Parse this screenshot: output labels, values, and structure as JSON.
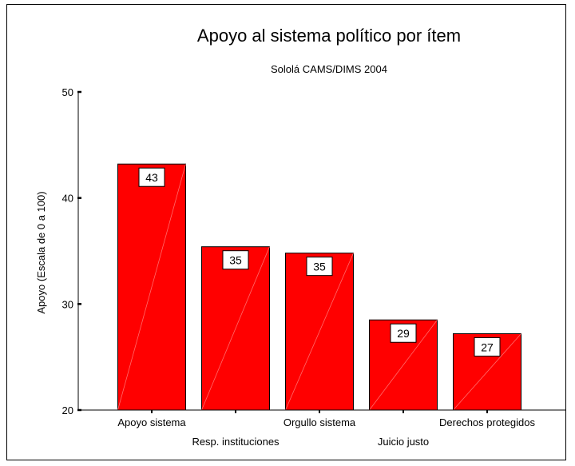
{
  "chart_data": {
    "type": "bar",
    "title": "Apoyo al sistema político por ítem",
    "subtitle": "Sololá CAMS/DIMS 2004",
    "xlabel": "",
    "ylabel": "Apoyo (Escala de 0 a 100)",
    "ylim": [
      20,
      50
    ],
    "yticks": [
      "20",
      "30",
      "40",
      "50"
    ],
    "categories": [
      "Apoyo sistema",
      "Resp. instituciones",
      "Orgullo sistema",
      "Juicio justo",
      "Derechos protegidos"
    ],
    "values": [
      43.2,
      35.4,
      34.8,
      28.5,
      27.2
    ],
    "data_labels": [
      "43",
      "35",
      "35",
      "29",
      "27"
    ],
    "bar_color": "#ff0000",
    "grid": false,
    "legend": "none"
  }
}
